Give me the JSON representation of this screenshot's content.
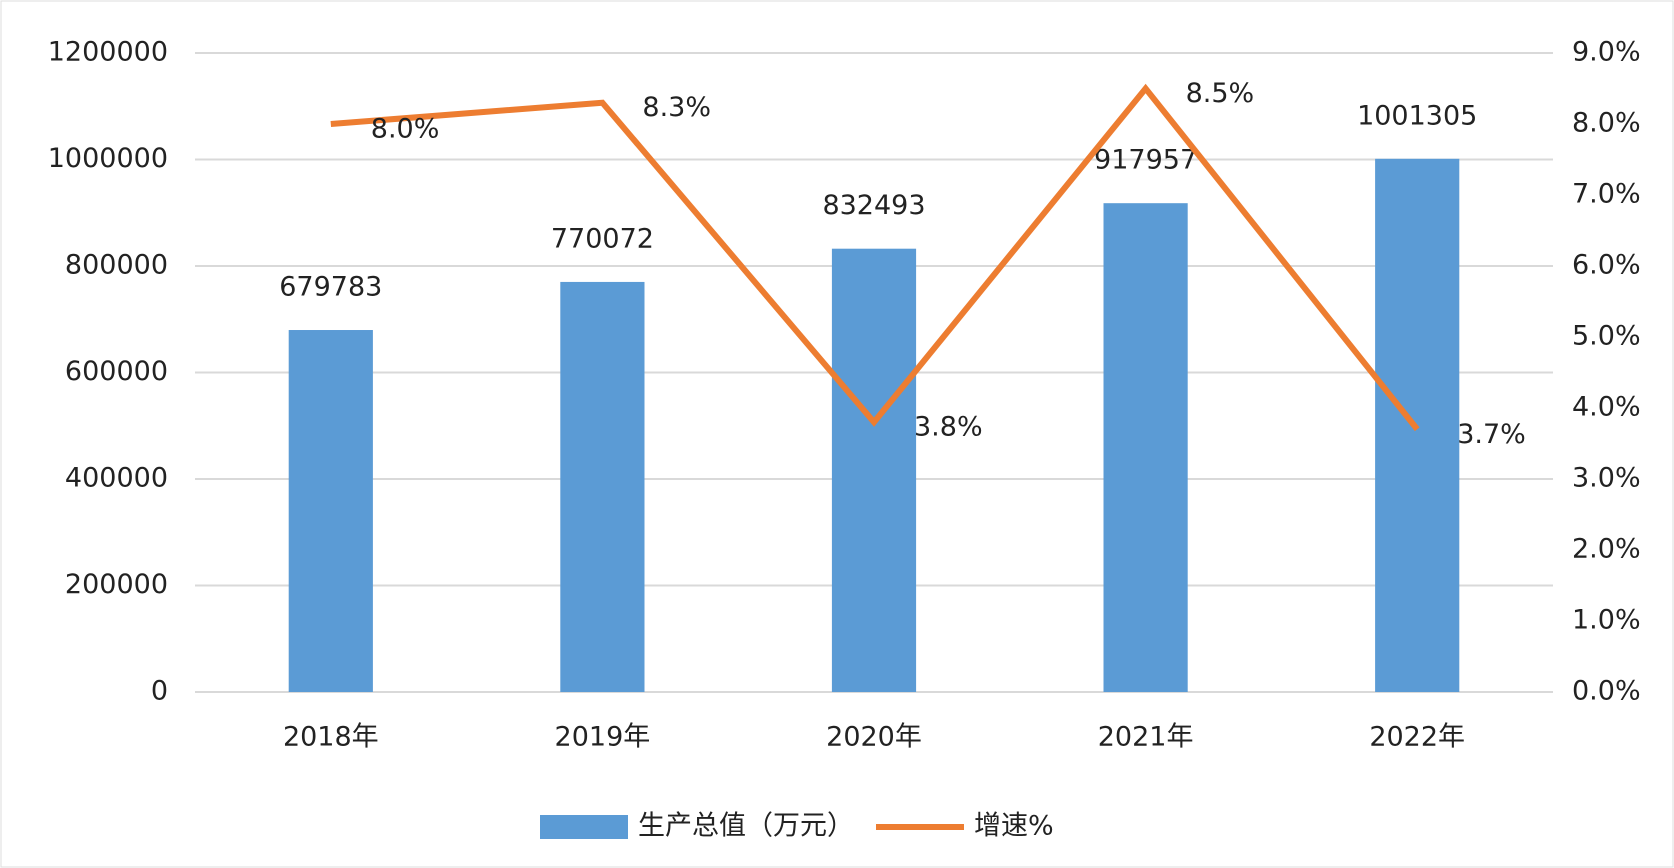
{
  "chart_data": {
    "type": "bar",
    "categories": [
      "2018年",
      "2019年",
      "2020年",
      "2021年",
      "2022年"
    ],
    "series": [
      {
        "name": "生产总值（万元）",
        "type": "bar",
        "color": "#5b9bd5",
        "values": [
          679783,
          770072,
          832493,
          917957,
          1001305
        ]
      },
      {
        "name": "增速%",
        "type": "line",
        "axis": "y2",
        "color": "#ed7d31",
        "values": [
          8.0,
          8.3,
          3.8,
          8.5,
          3.7
        ],
        "value_labels": [
          "8.0%",
          "8.3%",
          "3.8%",
          "8.5%",
          "3.7%"
        ]
      }
    ],
    "ylim": [
      0,
      1200000
    ],
    "yticks": [
      0,
      200000,
      400000,
      600000,
      800000,
      1000000,
      1200000
    ],
    "y2lim": [
      0,
      9
    ],
    "y2ticks": [
      {
        "value": 0,
        "label": "0.0%"
      },
      {
        "value": 1,
        "label": "1.0%"
      },
      {
        "value": 2,
        "label": "2.0%"
      },
      {
        "value": 3,
        "label": "3.0%"
      },
      {
        "value": 4,
        "label": "4.0%"
      },
      {
        "value": 5,
        "label": "5.0%"
      },
      {
        "value": 6,
        "label": "6.0%"
      },
      {
        "value": 7,
        "label": "7.0%"
      },
      {
        "value": 8,
        "label": "8.0%"
      },
      {
        "value": 9,
        "label": "9.0%"
      }
    ],
    "grid": true,
    "legend": "bottom"
  }
}
